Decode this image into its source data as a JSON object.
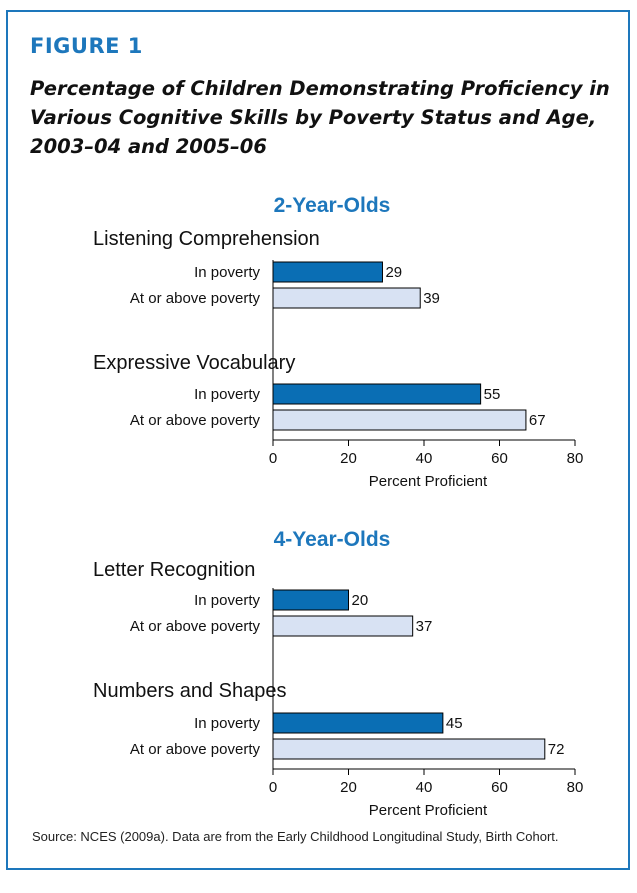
{
  "figure": {
    "label": "FIGURE 1",
    "title": "Percentage of Children Demonstrating Proficiency in Various Cognitive Skills by Poverty Status and Age, 2003–04 and 2005–06",
    "source": "Source: NCES (2009a). Data are from the Early Childhood Longitudinal Study, Birth Cohort."
  },
  "colors": {
    "accent": "#1d77bc",
    "in_poverty": "#0a6eb4",
    "above_poverty": "#d8e2f3"
  },
  "chart_data": [
    {
      "type": "bar",
      "orientation": "horizontal",
      "title": "2-Year-Olds",
      "xlabel": "Percent Proficient",
      "xlim": [
        0,
        80
      ],
      "xticks": [
        0,
        20,
        40,
        60,
        80
      ],
      "groups": [
        {
          "name": "Listening Comprehension",
          "bars": [
            {
              "label": "In poverty",
              "value": 29
            },
            {
              "label": "At or above poverty",
              "value": 39
            }
          ]
        },
        {
          "name": "Expressive Vocabulary",
          "bars": [
            {
              "label": "In poverty",
              "value": 55
            },
            {
              "label": "At or above poverty",
              "value": 67
            }
          ]
        }
      ]
    },
    {
      "type": "bar",
      "orientation": "horizontal",
      "title": "4-Year-Olds",
      "xlabel": "Percent Proficient",
      "xlim": [
        0,
        80
      ],
      "xticks": [
        0,
        20,
        40,
        60,
        80
      ],
      "groups": [
        {
          "name": "Letter Recognition",
          "bars": [
            {
              "label": "In poverty",
              "value": 20
            },
            {
              "label": "At or above poverty",
              "value": 37
            }
          ]
        },
        {
          "name": "Numbers and Shapes",
          "bars": [
            {
              "label": "In poverty",
              "value": 45
            },
            {
              "label": "At or above poverty",
              "value": 72
            }
          ]
        }
      ]
    }
  ]
}
